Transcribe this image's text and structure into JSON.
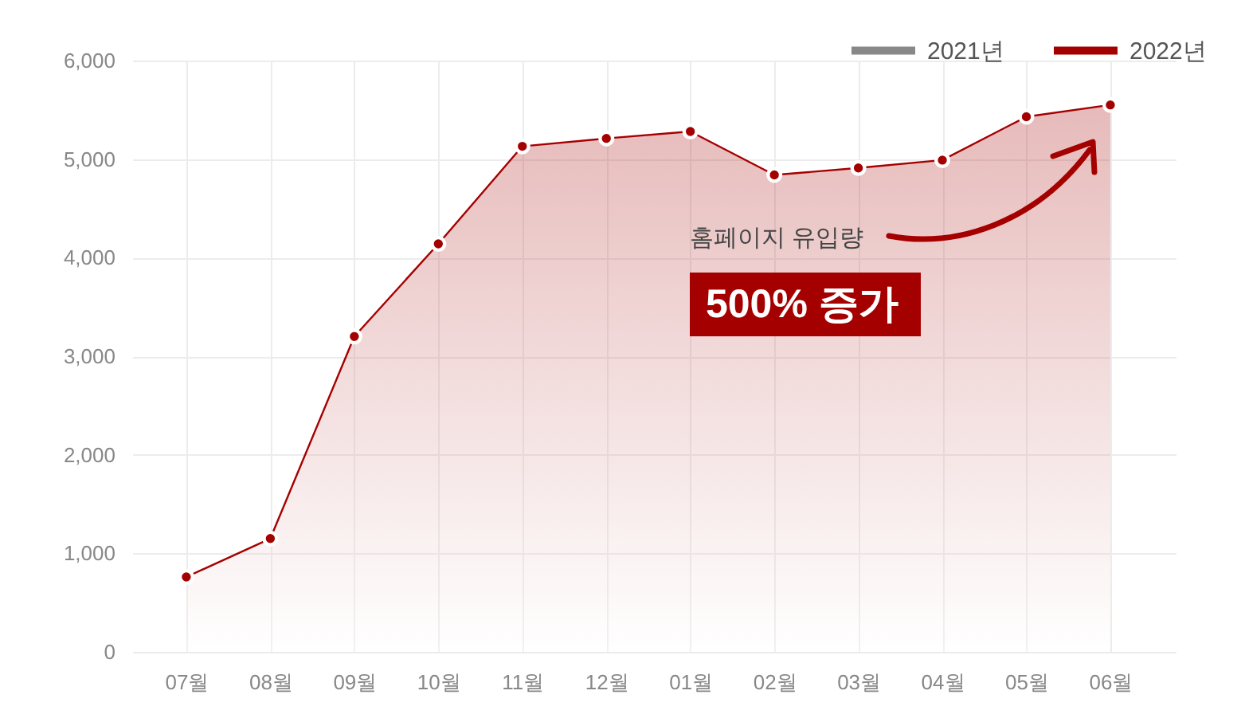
{
  "chart_data": {
    "type": "area",
    "categories": [
      "07월",
      "08월",
      "09월",
      "10월",
      "11월",
      "12월",
      "01월",
      "02월",
      "03월",
      "04월",
      "05월",
      "06월"
    ],
    "series": [
      {
        "name": "2021년",
        "color": "#888888",
        "values": [
          null,
          null,
          null,
          null,
          null,
          null,
          null,
          null,
          null,
          null,
          null,
          null
        ]
      },
      {
        "name": "2022년",
        "color": "#a50000",
        "values": [
          760,
          1150,
          3200,
          4140,
          5130,
          5210,
          5280,
          4840,
          4910,
          4990,
          5430,
          5550
        ]
      }
    ],
    "ylim": [
      0,
      6000
    ],
    "yticks": [
      0,
      {
        "value": 1000,
        "label": "1,000"
      },
      {
        "value": 2000,
        "label": "2,000"
      },
      {
        "value": 3000,
        "label": "3,000"
      },
      {
        "value": 4000,
        "label": "4,000"
      },
      {
        "value": 5000,
        "label": "5,000"
      },
      {
        "value": 6000,
        "label": "6,000"
      }
    ],
    "grid": true,
    "legend": "top right",
    "marker": "circle",
    "line_style": "solid",
    "annotations": [
      "홈페이지 유입량",
      "500% 증가"
    ]
  }
}
